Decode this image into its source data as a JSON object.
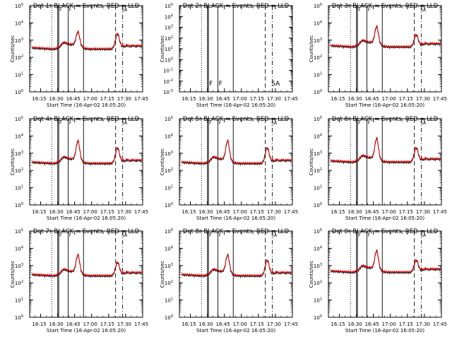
{
  "x_label": "Start Time (16-Apr-02 16:05:20)",
  "x_ticks": [
    "16:15",
    "16:30",
    "16:45",
    "17:00",
    "17:15",
    "17:30",
    "17:45"
  ],
  "y_ticks": [
    "10^0",
    "10^1",
    "10^2",
    "10^3",
    "10^4",
    "10^5"
  ],
  "y_label": "Counts/sec",
  "flag_labels": [
    "F",
    "F",
    "SA"
  ],
  "colors": {
    "events": "#000000",
    "lld": "#ff0000"
  },
  "chart_data": [
    {
      "type": "line",
      "title": "Det 1r BLACK = Events, RED = LLD",
      "xlabel": "Start Time (16-Apr-02 16:05:20)",
      "ylabel": "Counts/sec",
      "x_range": [
        "16:05:20",
        "17:45"
      ],
      "ylim": [
        1,
        100000
      ],
      "yscale": "log",
      "has_data": true,
      "flare_peak": 3000,
      "late_peak": 2300,
      "baseline": 300,
      "series": [
        {
          "name": "Events",
          "color": "#000000"
        },
        {
          "name": "LLD",
          "color": "#ff0000"
        }
      ]
    },
    {
      "type": "line",
      "title": "Det 2r BLACK = Events, RED = LLD",
      "xlabel": "Start Time (16-Apr-02 16:05:20)",
      "ylabel": "Counts/sec",
      "x_range": [
        "16:05:20",
        "17:45"
      ],
      "ylim": [
        0.001,
        100000
      ],
      "yscale": "log",
      "has_data": false,
      "series": [
        {
          "name": "Events",
          "color": "#000000"
        },
        {
          "name": "LLD",
          "color": "#ff0000"
        }
      ]
    },
    {
      "type": "line",
      "title": "Det 3r BLACK = Events, RED = LLD",
      "xlabel": "Start Time (16-Apr-02 16:05:20)",
      "ylabel": "Counts/sec",
      "x_range": [
        "16:05:20",
        "17:45"
      ],
      "ylim": [
        1,
        100000
      ],
      "yscale": "log",
      "has_data": true,
      "flare_peak": 6000,
      "late_peak": 2000,
      "baseline": 400,
      "series": [
        {
          "name": "Events",
          "color": "#000000"
        },
        {
          "name": "LLD",
          "color": "#ff0000"
        }
      ]
    },
    {
      "type": "line",
      "title": "Det 4r BLACK = Events, RED = LLD",
      "xlabel": "Start Time (16-Apr-02 16:05:20)",
      "ylabel": "Counts/sec",
      "x_range": [
        "16:05:20",
        "17:45"
      ],
      "ylim": [
        1,
        100000
      ],
      "yscale": "log",
      "has_data": true,
      "flare_peak": 5000,
      "late_peak": 2000,
      "baseline": 250,
      "series": [
        {
          "name": "Events",
          "color": "#000000"
        },
        {
          "name": "LLD",
          "color": "#ff0000"
        }
      ]
    },
    {
      "type": "line",
      "title": "Det 5r BLACK = Events, RED = LLD",
      "xlabel": "Start Time (16-Apr-02 16:05:20)",
      "ylabel": "Counts/sec",
      "x_range": [
        "16:05:20",
        "17:45"
      ],
      "ylim": [
        1,
        100000
      ],
      "yscale": "log",
      "has_data": true,
      "flare_peak": 5000,
      "late_peak": 2000,
      "baseline": 250,
      "series": [
        {
          "name": "Events",
          "color": "#000000"
        },
        {
          "name": "LLD",
          "color": "#ff0000"
        }
      ]
    },
    {
      "type": "line",
      "title": "Det 6r BLACK = Events, RED = LLD",
      "xlabel": "Start Time (16-Apr-02 16:05:20)",
      "ylabel": "Counts/sec",
      "x_range": [
        "16:05:20",
        "17:45"
      ],
      "ylim": [
        1,
        100000
      ],
      "yscale": "log",
      "has_data": true,
      "flare_peak": 7000,
      "late_peak": 2000,
      "baseline": 300,
      "series": [
        {
          "name": "Events",
          "color": "#000000"
        },
        {
          "name": "LLD",
          "color": "#ff0000"
        }
      ]
    },
    {
      "type": "line",
      "title": "Det 7r BLACK = Events, RED = LLD",
      "xlabel": "Start Time (16-Apr-02 16:05:20)",
      "ylabel": "Counts/sec",
      "x_range": [
        "16:05:20",
        "17:45"
      ],
      "ylim": [
        1,
        100000
      ],
      "yscale": "log",
      "has_data": true,
      "flare_peak": 4000,
      "late_peak": 1500,
      "baseline": 250,
      "series": [
        {
          "name": "Events",
          "color": "#000000"
        },
        {
          "name": "LLD",
          "color": "#ff0000"
        }
      ]
    },
    {
      "type": "line",
      "title": "Det 8r BLACK = Events, RED = LLD",
      "xlabel": "Start Time (16-Apr-02 16:05:20)",
      "ylabel": "Counts/sec",
      "x_range": [
        "16:05:20",
        "17:45"
      ],
      "ylim": [
        1,
        100000
      ],
      "yscale": "log",
      "has_data": true,
      "flare_peak": 4000,
      "late_peak": 2000,
      "baseline": 250,
      "series": [
        {
          "name": "Events",
          "color": "#000000"
        },
        {
          "name": "LLD",
          "color": "#ff0000"
        }
      ]
    },
    {
      "type": "line",
      "title": "Det 9r BLACK = Events, RED = LLD",
      "xlabel": "Start Time (16-Apr-02 16:05:20)",
      "ylabel": "Counts/sec",
      "x_range": [
        "16:05:20",
        "17:45"
      ],
      "ylim": [
        1,
        100000
      ],
      "yscale": "log",
      "has_data": true,
      "flare_peak": 7000,
      "late_peak": 2000,
      "baseline": 400,
      "series": [
        {
          "name": "Events",
          "color": "#000000"
        },
        {
          "name": "LLD",
          "color": "#ff0000"
        }
      ]
    }
  ]
}
